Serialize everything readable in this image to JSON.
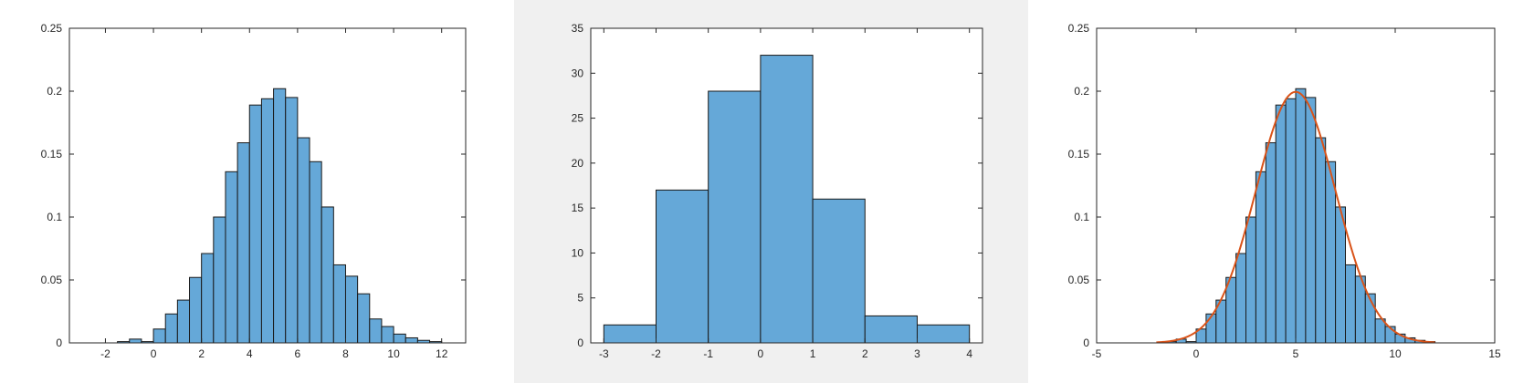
{
  "colors": {
    "bar_fill": "#65a8d8",
    "bar_edge": "#1a1a1a",
    "axes": "#262626",
    "axes_bg": "#ffffff",
    "fit_line": "#d95319",
    "panel2_bg": "#f0f0f0"
  },
  "chart_data": [
    {
      "type": "bar",
      "title": "",
      "xlabel": "",
      "ylabel": "",
      "xlim": [
        -3.5,
        13
      ],
      "ylim": [
        0,
        0.25
      ],
      "grid": false,
      "legend": "none",
      "x_ticks": [
        -2,
        0,
        2,
        4,
        6,
        8,
        10,
        12
      ],
      "x_tick_labels": [
        "-2",
        "0",
        "2",
        "4",
        "6",
        "8",
        "10",
        "12"
      ],
      "y_ticks": [
        0,
        0.05,
        0.1,
        0.15,
        0.2,
        0.25
      ],
      "y_tick_labels": [
        "0",
        "0.05",
        "0.1",
        "0.15",
        "0.2",
        "0.25"
      ],
      "bin_width": 0.5,
      "bin_edges_start": -1.5,
      "values": [
        0.001,
        0.003,
        0.001,
        0.011,
        0.023,
        0.034,
        0.052,
        0.071,
        0.1,
        0.136,
        0.159,
        0.189,
        0.194,
        0.202,
        0.195,
        0.163,
        0.144,
        0.108,
        0.062,
        0.053,
        0.039,
        0.019,
        0.013,
        0.007,
        0.004,
        0.002,
        0.001
      ]
    },
    {
      "type": "bar",
      "title": "",
      "xlabel": "",
      "ylabel": "",
      "xlim": [
        -3.25,
        4.25
      ],
      "ylim": [
        0,
        35
      ],
      "grid": false,
      "legend": "none",
      "x_ticks": [
        -3,
        -2,
        -1,
        0,
        1,
        2,
        3,
        4
      ],
      "x_tick_labels": [
        "-3",
        "-2",
        "-1",
        "0",
        "1",
        "2",
        "3",
        "4"
      ],
      "y_ticks": [
        0,
        5,
        10,
        15,
        20,
        25,
        30,
        35
      ],
      "y_tick_labels": [
        "0",
        "5",
        "10",
        "15",
        "20",
        "25",
        "30",
        "35"
      ],
      "bin_width": 1,
      "bin_edges_start": -3,
      "values": [
        2,
        17,
        28,
        32,
        16,
        3,
        2
      ]
    },
    {
      "type": "bar",
      "title": "",
      "xlabel": "",
      "ylabel": "",
      "xlim": [
        -5,
        15
      ],
      "ylim": [
        0,
        0.25
      ],
      "grid": false,
      "legend": "none",
      "x_ticks": [
        -5,
        0,
        5,
        10,
        15
      ],
      "x_tick_labels": [
        "-5",
        "0",
        "5",
        "10",
        "15"
      ],
      "y_ticks": [
        0,
        0.05,
        0.1,
        0.15,
        0.2,
        0.25
      ],
      "y_tick_labels": [
        "0",
        "0.05",
        "0.1",
        "0.15",
        "0.2",
        "0.25"
      ],
      "bin_width": 0.5,
      "bin_edges_start": -1.5,
      "values": [
        0.001,
        0.003,
        0.001,
        0.011,
        0.023,
        0.034,
        0.052,
        0.071,
        0.1,
        0.136,
        0.159,
        0.189,
        0.194,
        0.202,
        0.195,
        0.163,
        0.144,
        0.108,
        0.062,
        0.053,
        0.039,
        0.019,
        0.013,
        0.007,
        0.004,
        0.002,
        0.001
      ],
      "fit_curve": {
        "type": "normal_pdf",
        "mean": 5,
        "sd": 2,
        "x_range": [
          -2,
          12
        ]
      }
    }
  ]
}
